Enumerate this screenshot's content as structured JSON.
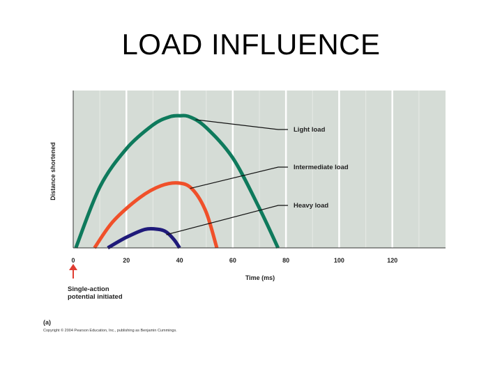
{
  "slide": {
    "title": "LOAD INFLUENCE"
  },
  "chart_data": {
    "type": "line",
    "title": "",
    "xlabel": "Time (ms)",
    "ylabel": "Distance shortened",
    "xlim": [
      0,
      140
    ],
    "ylim": [
      0,
      100
    ],
    "x_ticks": [
      0,
      20,
      40,
      60,
      80,
      100,
      120
    ],
    "x_tick_labels": [
      "0",
      "20",
      "40",
      "60",
      "80",
      "100",
      "120"
    ],
    "grid": "vertical",
    "series": [
      {
        "name": "Light load",
        "color": "#0e7a5c",
        "x": [
          1,
          10,
          20,
          30,
          36,
          40,
          44,
          50,
          60,
          70,
          77
        ],
        "y": [
          0,
          46,
          75,
          93,
          99,
          100,
          99,
          91,
          68,
          30,
          0
        ]
      },
      {
        "name": "Intermediate load",
        "color": "#f0502a",
        "x": [
          8,
          15,
          25,
          33,
          40,
          45,
          50,
          54
        ],
        "y": [
          0,
          20,
          38,
          47,
          49,
          44,
          27,
          0
        ]
      },
      {
        "name": "Heavy load",
        "color": "#1f1a7a",
        "x": [
          13,
          20,
          27,
          32,
          35,
          38,
          40
        ],
        "y": [
          0,
          8,
          14,
          14,
          12,
          6,
          0
        ]
      }
    ],
    "annotations": {
      "start_marker": "Single-action potential initiated",
      "start_marker_lines": [
        "Single-action",
        "potential initiated"
      ],
      "figure_label": "(a)",
      "copyright": "Copyright © 2004 Pearson Education, Inc., publishing as Benjamin Cummings."
    },
    "colors": {
      "plot_background": "#d5dcd6",
      "gridline": "#ffffff",
      "start_arrow": "#e03c31"
    }
  }
}
